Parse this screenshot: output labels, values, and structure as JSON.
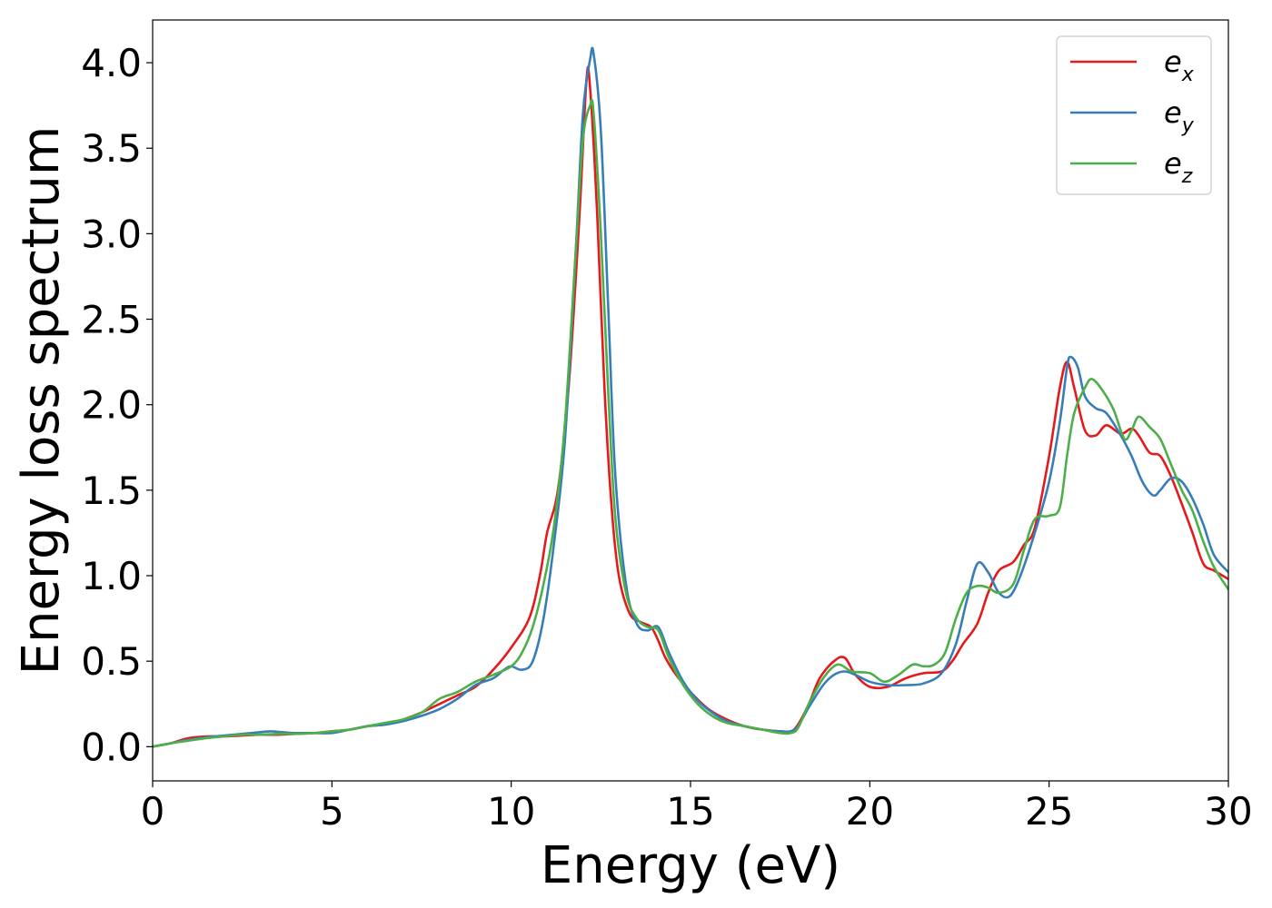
{
  "chart_data": {
    "type": "line",
    "xlabel": "Energy (eV)",
    "ylabel": "Energy loss spectrum",
    "xlim": [
      0,
      30
    ],
    "ylim": [
      -0.2,
      4.25
    ],
    "xticks": [
      0,
      5,
      10,
      15,
      20,
      25,
      30
    ],
    "xtick_labels": [
      "0",
      "5",
      "10",
      "15",
      "20",
      "25",
      "30"
    ],
    "yticks": [
      0.0,
      0.5,
      1.0,
      1.5,
      2.0,
      2.5,
      3.0,
      3.5,
      4.0
    ],
    "ytick_labels": [
      "0.0",
      "0.5",
      "1.0",
      "1.5",
      "2.0",
      "2.5",
      "3.0",
      "3.5",
      "4.0"
    ],
    "grid": false,
    "legend_position": "top-right",
    "series": [
      {
        "name": "e",
        "subscript": "x",
        "color": "#e41a1c",
        "x": [
          0,
          0.5,
          1.0,
          1.5,
          2.0,
          2.5,
          3.0,
          3.5,
          4.0,
          4.5,
          5.0,
          5.5,
          6.0,
          6.5,
          7.0,
          7.5,
          8.0,
          8.5,
          9.0,
          9.5,
          10.0,
          10.5,
          10.8,
          11.0,
          11.3,
          11.6,
          11.9,
          12.1,
          12.2,
          12.4,
          12.6,
          12.8,
          13.0,
          13.3,
          13.6,
          13.9,
          14.1,
          14.3,
          14.6,
          15.0,
          15.5,
          16.0,
          16.5,
          17.0,
          17.5,
          17.8,
          18.0,
          18.3,
          18.6,
          19.0,
          19.3,
          19.6,
          20.0,
          20.5,
          21.0,
          21.5,
          22.0,
          22.3,
          22.6,
          23.0,
          23.3,
          23.6,
          24.0,
          24.3,
          24.6,
          25.0,
          25.3,
          25.5,
          25.7,
          26.0,
          26.3,
          26.6,
          27.0,
          27.3,
          27.5,
          27.8,
          28.1,
          28.4,
          28.7,
          29.0,
          29.3,
          29.6,
          30.0
        ],
        "y": [
          0.0,
          0.02,
          0.05,
          0.06,
          0.06,
          0.065,
          0.07,
          0.07,
          0.075,
          0.08,
          0.09,
          0.1,
          0.12,
          0.13,
          0.16,
          0.2,
          0.25,
          0.3,
          0.35,
          0.45,
          0.58,
          0.75,
          1.0,
          1.25,
          1.5,
          2.1,
          3.1,
          3.9,
          3.85,
          3.1,
          2.1,
          1.4,
          1.0,
          0.78,
          0.73,
          0.7,
          0.62,
          0.52,
          0.42,
          0.32,
          0.22,
          0.16,
          0.12,
          0.1,
          0.09,
          0.09,
          0.13,
          0.25,
          0.4,
          0.5,
          0.52,
          0.42,
          0.35,
          0.35,
          0.4,
          0.43,
          0.44,
          0.5,
          0.6,
          0.72,
          0.9,
          1.03,
          1.08,
          1.18,
          1.28,
          1.7,
          2.1,
          2.25,
          2.1,
          1.85,
          1.82,
          1.88,
          1.83,
          1.86,
          1.82,
          1.72,
          1.7,
          1.58,
          1.42,
          1.25,
          1.07,
          1.03,
          0.98
        ]
      },
      {
        "name": "e",
        "subscript": "y",
        "color": "#377eb8",
        "x": [
          0,
          0.5,
          1.0,
          1.5,
          2.0,
          2.5,
          3.0,
          3.3,
          3.6,
          4.0,
          4.5,
          5.0,
          5.5,
          6.0,
          6.5,
          7.0,
          7.5,
          8.0,
          8.5,
          9.0,
          9.5,
          9.8,
          10.0,
          10.3,
          10.6,
          10.9,
          11.2,
          11.5,
          11.8,
          12.0,
          12.2,
          12.3,
          12.5,
          12.7,
          12.9,
          13.2,
          13.5,
          13.8,
          14.1,
          14.4,
          14.8,
          15.2,
          15.6,
          16.0,
          16.5,
          17.0,
          17.5,
          17.8,
          18.0,
          18.3,
          18.7,
          19.0,
          19.3,
          19.6,
          20.0,
          20.5,
          21.0,
          21.5,
          22.0,
          22.4,
          22.7,
          23.0,
          23.3,
          23.6,
          23.9,
          24.2,
          24.6,
          25.0,
          25.3,
          25.5,
          25.6,
          25.8,
          26.0,
          26.3,
          26.6,
          27.0,
          27.3,
          27.6,
          27.9,
          28.1,
          28.4,
          28.7,
          29.0,
          29.3,
          29.6,
          30.0
        ],
        "y": [
          0.0,
          0.02,
          0.04,
          0.055,
          0.065,
          0.075,
          0.085,
          0.09,
          0.085,
          0.08,
          0.08,
          0.08,
          0.1,
          0.12,
          0.13,
          0.15,
          0.18,
          0.22,
          0.28,
          0.36,
          0.4,
          0.45,
          0.47,
          0.45,
          0.5,
          0.75,
          1.2,
          1.8,
          2.9,
          3.7,
          4.02,
          4.05,
          3.6,
          2.6,
          1.6,
          0.95,
          0.72,
          0.68,
          0.7,
          0.55,
          0.38,
          0.27,
          0.2,
          0.15,
          0.12,
          0.1,
          0.09,
          0.09,
          0.12,
          0.23,
          0.36,
          0.42,
          0.44,
          0.42,
          0.38,
          0.36,
          0.36,
          0.37,
          0.43,
          0.6,
          0.85,
          1.07,
          1.02,
          0.9,
          0.88,
          1.0,
          1.25,
          1.55,
          1.9,
          2.22,
          2.28,
          2.22,
          2.05,
          1.98,
          1.95,
          1.82,
          1.7,
          1.55,
          1.47,
          1.5,
          1.57,
          1.55,
          1.45,
          1.3,
          1.12,
          1.02
        ]
      },
      {
        "name": "e",
        "subscript": "z",
        "color": "#4daf4a",
        "x": [
          0,
          0.5,
          1.0,
          1.5,
          2.0,
          2.5,
          3.0,
          3.5,
          4.0,
          4.5,
          5.0,
          5.5,
          6.0,
          6.5,
          7.0,
          7.5,
          8.0,
          8.5,
          9.0,
          9.5,
          10.0,
          10.3,
          10.6,
          10.9,
          11.2,
          11.5,
          11.8,
          12.0,
          12.2,
          12.3,
          12.5,
          12.7,
          12.9,
          13.2,
          13.5,
          13.8,
          14.1,
          14.4,
          14.8,
          15.2,
          15.6,
          16.0,
          16.5,
          17.0,
          17.5,
          17.8,
          18.0,
          18.3,
          18.7,
          19.1,
          19.5,
          20.0,
          20.4,
          20.8,
          21.2,
          21.5,
          21.8,
          22.1,
          22.4,
          22.7,
          23.0,
          23.3,
          23.6,
          24.0,
          24.3,
          24.6,
          25.0,
          25.3,
          25.5,
          25.7,
          26.0,
          26.2,
          26.5,
          26.8,
          27.1,
          27.3,
          27.5,
          27.8,
          28.1,
          28.4,
          28.7,
          29.0,
          29.3,
          29.6,
          30.0
        ],
        "y": [
          0.0,
          0.02,
          0.035,
          0.05,
          0.06,
          0.07,
          0.07,
          0.075,
          0.075,
          0.08,
          0.09,
          0.1,
          0.12,
          0.14,
          0.16,
          0.2,
          0.28,
          0.32,
          0.38,
          0.42,
          0.47,
          0.55,
          0.7,
          0.95,
          1.3,
          1.9,
          2.9,
          3.55,
          3.75,
          3.7,
          3.0,
          2.1,
          1.35,
          0.9,
          0.75,
          0.7,
          0.68,
          0.52,
          0.36,
          0.25,
          0.18,
          0.14,
          0.12,
          0.1,
          0.08,
          0.08,
          0.11,
          0.25,
          0.4,
          0.48,
          0.44,
          0.43,
          0.38,
          0.42,
          0.48,
          0.47,
          0.48,
          0.55,
          0.75,
          0.9,
          0.94,
          0.93,
          0.9,
          0.95,
          1.15,
          1.33,
          1.35,
          1.4,
          1.7,
          1.95,
          2.1,
          2.15,
          2.08,
          1.97,
          1.8,
          1.85,
          1.93,
          1.87,
          1.8,
          1.65,
          1.5,
          1.38,
          1.2,
          1.05,
          0.92
        ]
      }
    ]
  }
}
